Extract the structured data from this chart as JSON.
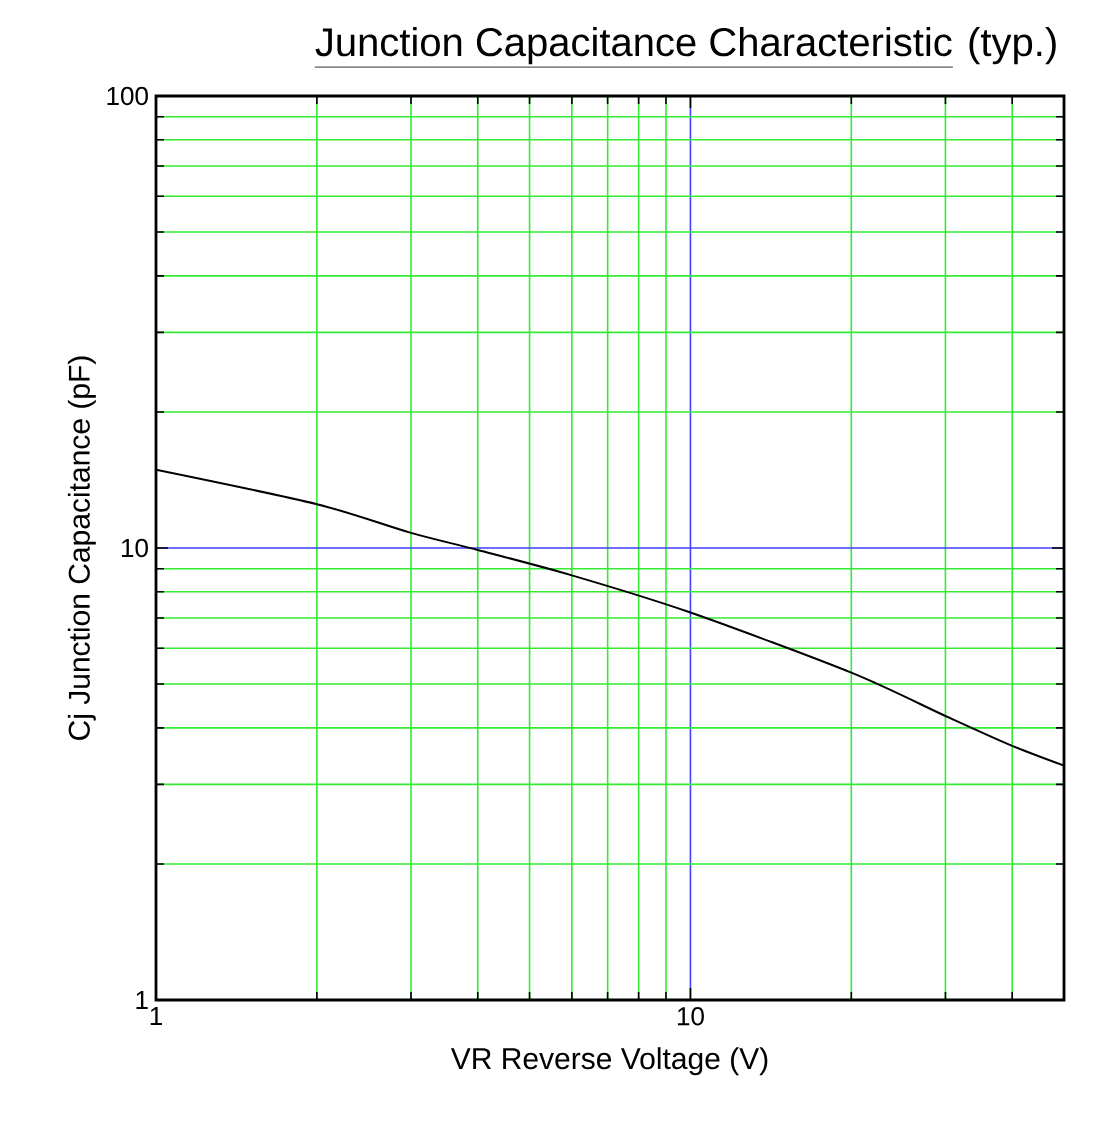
{
  "chart_data": {
    "type": "line",
    "title": "Junction Capacitance Characteristic",
    "subtitle": "(typ.)",
    "xlabel": "VR   Reverse Voltage   (V)",
    "ylabel": "Cj   Junction Capacitance    (pF)",
    "log": "xy",
    "grid": true,
    "marker": "none",
    "line_style": "solid",
    "xlim": [
      1,
      50
    ],
    "ylim": [
      1,
      100
    ],
    "xticks": [
      1,
      {
        "value": 2,
        "label": null
      },
      {
        "value": 3,
        "label": null
      },
      {
        "value": 4,
        "label": null
      },
      {
        "value": 5,
        "label": null
      },
      {
        "value": 6,
        "label": null
      },
      {
        "value": 7,
        "label": null
      },
      {
        "value": 8,
        "label": null
      },
      {
        "value": 9,
        "label": null
      },
      10,
      {
        "value": 20,
        "label": null
      },
      {
        "value": 30,
        "label": null
      },
      {
        "value": 40,
        "label": null
      }
    ],
    "yticks": [
      1,
      {
        "value": 2,
        "label": null
      },
      {
        "value": 3,
        "label": null
      },
      {
        "value": 4,
        "label": null
      },
      {
        "value": 5,
        "label": null
      },
      {
        "value": 6,
        "label": null
      },
      {
        "value": 7,
        "label": null
      },
      {
        "value": 8,
        "label": null
      },
      {
        "value": 9,
        "label": null
      },
      10,
      {
        "value": 20,
        "label": null
      },
      {
        "value": 30,
        "label": null
      },
      {
        "value": 40,
        "label": null
      },
      {
        "value": 50,
        "label": null
      },
      {
        "value": 60,
        "label": null
      },
      {
        "value": 70,
        "label": null
      },
      {
        "value": 80,
        "label": null
      },
      {
        "value": 90,
        "label": null
      },
      100
    ],
    "series": [
      {
        "color": "#000000",
        "x": [
          1,
          2,
          3,
          4,
          6,
          10,
          20,
          30,
          40,
          50
        ],
        "values": [
          14.9,
          12.5,
          10.8,
          9.9,
          8.7,
          7.2,
          5.3,
          4.25,
          3.65,
          3.3
        ]
      }
    ]
  }
}
